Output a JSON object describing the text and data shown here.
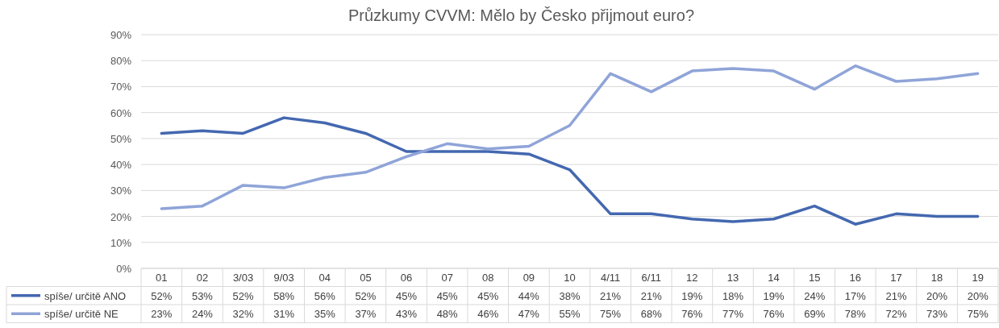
{
  "chart_data": {
    "type": "line",
    "title": "Průzkumy CVVM: Mělo by Česko přijmout euro?",
    "categories": [
      "01",
      "02",
      "3/03",
      "9/03",
      "04",
      "05",
      "06",
      "07",
      "08",
      "09",
      "10",
      "4/11",
      "6/11",
      "12",
      "13",
      "14",
      "15",
      "16",
      "17",
      "18",
      "19"
    ],
    "series": [
      {
        "name": "spíše/ určitě ANO",
        "color": "#4468b0",
        "values": [
          52,
          53,
          52,
          58,
          56,
          52,
          45,
          45,
          45,
          44,
          38,
          21,
          21,
          19,
          18,
          19,
          24,
          17,
          21,
          20,
          20
        ],
        "value_labels": [
          "52%",
          "53%",
          "52%",
          "58%",
          "56%",
          "52%",
          "45%",
          "45%",
          "45%",
          "44%",
          "38%",
          "21%",
          "21%",
          "19%",
          "18%",
          "19%",
          "24%",
          "17%",
          "21%",
          "20%",
          "20%"
        ]
      },
      {
        "name": "spíše/ určitě NE",
        "color": "#8fa4d8",
        "values": [
          23,
          24,
          32,
          31,
          35,
          37,
          43,
          48,
          46,
          47,
          55,
          75,
          68,
          76,
          77,
          76,
          69,
          78,
          72,
          73,
          75
        ],
        "value_labels": [
          "23%",
          "24%",
          "32%",
          "31%",
          "35%",
          "37%",
          "43%",
          "48%",
          "46%",
          "47%",
          "55%",
          "75%",
          "68%",
          "76%",
          "77%",
          "76%",
          "69%",
          "78%",
          "72%",
          "73%",
          "75%"
        ]
      }
    ],
    "ylim": [
      0,
      90
    ],
    "yticks": [
      {
        "value": 0,
        "label": "0%"
      },
      {
        "value": 10,
        "label": "10%"
      },
      {
        "value": 20,
        "label": "20%"
      },
      {
        "value": 30,
        "label": "30%"
      },
      {
        "value": 40,
        "label": "40%"
      },
      {
        "value": 50,
        "label": "50%"
      },
      {
        "value": 60,
        "label": "60%"
      },
      {
        "value": 70,
        "label": "70%"
      },
      {
        "value": 80,
        "label": "80%"
      },
      {
        "value": 90,
        "label": "90%"
      }
    ],
    "grid": "y",
    "legend": "bottom",
    "marker": "none",
    "line_style": "solid"
  }
}
